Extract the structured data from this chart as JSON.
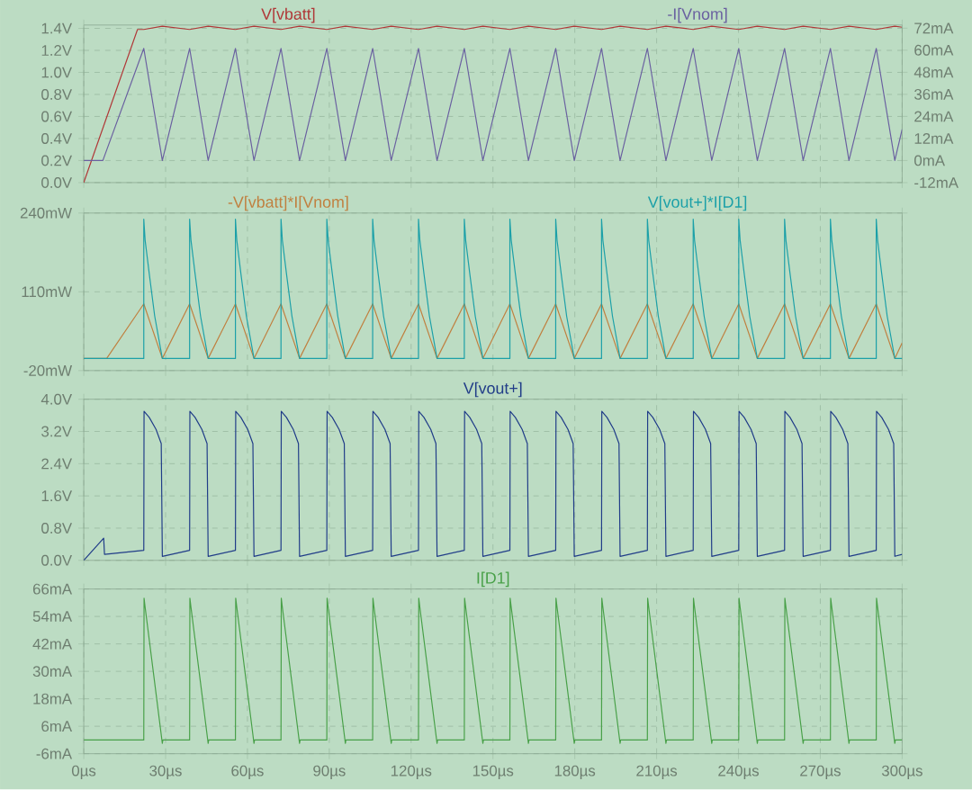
{
  "chart_data": [
    {
      "type": "line",
      "xlim": [
        0,
        300
      ],
      "xticks": [
        {
          "value": 0,
          "label": null
        },
        {
          "value": 30,
          "label": null
        },
        {
          "value": 60,
          "label": null
        },
        {
          "value": 90,
          "label": null
        },
        {
          "value": 120,
          "label": null
        },
        {
          "value": 150,
          "label": null
        },
        {
          "value": 180,
          "label": null
        },
        {
          "value": 210,
          "label": null
        },
        {
          "value": 240,
          "label": null
        },
        {
          "value": 270,
          "label": null
        },
        {
          "value": 300,
          "label": null
        }
      ],
      "ylim": [
        0,
        1.43
      ],
      "yticks": [
        {
          "value": 0,
          "label": "0.0V"
        },
        {
          "value": 0.2,
          "label": "0.2V"
        },
        {
          "value": 0.4,
          "label": "0.4V"
        },
        {
          "value": 0.6,
          "label": "0.6V"
        },
        {
          "value": 0.8,
          "label": "0.8V"
        },
        {
          "value": 1.0,
          "label": "1.0V"
        },
        {
          "value": 1.2,
          "label": "1.2V"
        },
        {
          "value": 1.4,
          "label": "1.4V"
        }
      ],
      "y2lim": [
        -12,
        73.7
      ],
      "y2ticks": [
        {
          "value": -12,
          "label": "-12mA"
        },
        {
          "value": 0,
          "label": "0mA"
        },
        {
          "value": 12,
          "label": "12mA"
        },
        {
          "value": 24,
          "label": "24mA"
        },
        {
          "value": 36,
          "label": "36mA"
        },
        {
          "value": 48,
          "label": "48mA"
        },
        {
          "value": 60,
          "label": "60mA"
        },
        {
          "value": 72,
          "label": "72mA"
        }
      ],
      "grid": true,
      "tick_labels": "y",
      "series": [
        {
          "name": "V[vbatt]",
          "color": "#b03838",
          "x": [
            0,
            19.7,
            22.0,
            28.8,
            38.8,
            45.6,
            55.6,
            62.4,
            72.3,
            79.1,
            89.1,
            95.9,
            105.9,
            112.7,
            122.7,
            129.5,
            139.5,
            146.3,
            156.2,
            163.0,
            173.0,
            179.8,
            189.8,
            196.6,
            206.6,
            213.4,
            223.4,
            230.2,
            240.1,
            246.9,
            256.9,
            263.7,
            273.7,
            280.5,
            290.5,
            297.3,
            300
          ],
          "values": [
            0,
            1.39,
            1.39,
            1.42,
            1.39,
            1.42,
            1.39,
            1.42,
            1.39,
            1.42,
            1.39,
            1.42,
            1.39,
            1.42,
            1.39,
            1.42,
            1.39,
            1.42,
            1.39,
            1.42,
            1.39,
            1.42,
            1.39,
            1.42,
            1.39,
            1.42,
            1.39,
            1.42,
            1.39,
            1.42,
            1.39,
            1.42,
            1.39,
            1.42,
            1.39,
            1.42,
            1.41
          ]
        },
        {
          "name": "-I[Vnom]",
          "color": "#6a60a0",
          "axis": "y2",
          "x": [
            0,
            7,
            22.0,
            28.8,
            38.8,
            45.6,
            55.6,
            62.4,
            72.3,
            79.1,
            89.1,
            95.9,
            105.9,
            112.7,
            122.7,
            129.5,
            139.5,
            146.3,
            156.2,
            163.0,
            173.0,
            179.8,
            189.8,
            196.6,
            206.6,
            213.4,
            223.4,
            230.2,
            240.1,
            246.9,
            256.9,
            263.7,
            273.7,
            280.5,
            290.5,
            297.3,
            300
          ],
          "values": [
            0,
            0,
            61,
            0,
            61,
            0,
            61,
            0,
            61,
            0,
            61,
            0,
            61,
            0,
            61,
            0,
            61,
            0,
            61,
            0,
            61,
            0,
            61,
            0,
            61,
            0,
            61,
            0,
            61,
            0,
            61,
            0,
            61,
            0,
            61,
            0,
            17
          ]
        }
      ]
    },
    {
      "type": "line",
      "xlim": [
        0,
        300
      ],
      "xticks": [
        {
          "value": 0,
          "label": null
        },
        {
          "value": 30,
          "label": null
        },
        {
          "value": 60,
          "label": null
        },
        {
          "value": 90,
          "label": null
        },
        {
          "value": 120,
          "label": null
        },
        {
          "value": 150,
          "label": null
        },
        {
          "value": 180,
          "label": null
        },
        {
          "value": 210,
          "label": null
        },
        {
          "value": 240,
          "label": null
        },
        {
          "value": 270,
          "label": null
        },
        {
          "value": 300,
          "label": null
        }
      ],
      "ylim": [
        -20,
        240
      ],
      "yticks": [
        {
          "value": -20,
          "label": "-20mW"
        },
        {
          "value": 110,
          "label": "110mW"
        },
        {
          "value": 240,
          "label": "240mW"
        }
      ],
      "grid": true,
      "tick_labels": "y",
      "series": [
        {
          "name": "-V[vbatt]*I[Vnom]",
          "color": "#c08040",
          "x": [
            0,
            8.4,
            22.0,
            28.8,
            38.8,
            45.6,
            55.6,
            62.4,
            72.3,
            79.1,
            89.1,
            95.9,
            105.9,
            112.7,
            122.7,
            129.5,
            139.5,
            146.3,
            156.2,
            163.0,
            173.0,
            179.8,
            189.8,
            196.6,
            206.6,
            213.4,
            223.4,
            230.2,
            240.1,
            246.9,
            256.9,
            263.7,
            273.7,
            280.5,
            290.5,
            297.3,
            300
          ],
          "values": [
            0,
            0,
            90,
            0,
            90,
            0,
            90,
            0,
            90,
            0,
            90,
            0,
            90,
            0,
            90,
            0,
            90,
            0,
            90,
            0,
            90,
            0,
            90,
            0,
            90,
            0,
            90,
            0,
            90,
            0,
            90,
            0,
            90,
            0,
            90,
            0,
            26
          ]
        },
        {
          "name": "V[vout+]*I[D1]",
          "color": "#1ca0a8",
          "x": [
            0,
            22.0,
            22.0,
            22.5,
            24.0,
            26.0,
            28.8,
            38.8,
            38.8,
            39.3,
            40.8,
            42.8,
            45.6,
            55.6,
            55.6,
            56.1,
            57.6,
            59.6,
            62.4,
            72.3,
            72.3,
            72.8,
            74.3,
            76.3,
            79.1,
            89.1,
            89.1,
            89.6,
            91.1,
            93.1,
            95.9,
            105.9,
            105.9,
            106.4,
            107.9,
            109.9,
            112.7,
            122.7,
            122.7,
            123.2,
            124.7,
            126.7,
            129.5,
            139.5,
            139.5,
            140.0,
            141.5,
            143.5,
            146.3,
            156.2,
            156.2,
            156.7,
            158.2,
            160.2,
            163.0,
            173.0,
            173.0,
            173.5,
            175.0,
            177.0,
            179.8,
            189.8,
            189.8,
            190.3,
            191.8,
            193.8,
            196.6,
            206.6,
            206.6,
            207.1,
            208.6,
            210.6,
            213.4,
            223.4,
            223.4,
            223.9,
            225.4,
            227.4,
            230.2,
            240.1,
            240.1,
            240.6,
            242.1,
            244.1,
            246.9,
            256.9,
            256.9,
            257.4,
            258.9,
            260.9,
            263.7,
            273.7,
            273.7,
            274.2,
            275.7,
            277.7,
            280.5,
            290.5,
            290.5,
            291.0,
            292.5,
            294.5,
            297.3,
            300
          ],
          "values": [
            0,
            0,
            230,
            195,
            140,
            70,
            0,
            0,
            230,
            195,
            140,
            70,
            0,
            0,
            230,
            195,
            140,
            70,
            0,
            0,
            230,
            195,
            140,
            70,
            0,
            0,
            230,
            195,
            140,
            70,
            0,
            0,
            230,
            195,
            140,
            70,
            0,
            0,
            230,
            195,
            140,
            70,
            0,
            0,
            230,
            195,
            140,
            70,
            0,
            0,
            230,
            195,
            140,
            70,
            0,
            0,
            230,
            195,
            140,
            70,
            0,
            0,
            230,
            195,
            140,
            70,
            0,
            0,
            230,
            195,
            140,
            70,
            0,
            0,
            230,
            195,
            140,
            70,
            0,
            0,
            230,
            195,
            140,
            70,
            0,
            0,
            230,
            195,
            140,
            70,
            0,
            0,
            230,
            195,
            140,
            70,
            0,
            0,
            230,
            195,
            140,
            70,
            0,
            0
          ]
        }
      ]
    },
    {
      "type": "line",
      "xlim": [
        0,
        300
      ],
      "xticks": [
        {
          "value": 0,
          "label": null
        },
        {
          "value": 30,
          "label": null
        },
        {
          "value": 60,
          "label": null
        },
        {
          "value": 90,
          "label": null
        },
        {
          "value": 120,
          "label": null
        },
        {
          "value": 150,
          "label": null
        },
        {
          "value": 180,
          "label": null
        },
        {
          "value": 210,
          "label": null
        },
        {
          "value": 240,
          "label": null
        },
        {
          "value": 270,
          "label": null
        },
        {
          "value": 300,
          "label": null
        }
      ],
      "ylim": [
        0,
        4.0
      ],
      "yticks": [
        {
          "value": 0,
          "label": "0.0V"
        },
        {
          "value": 0.8,
          "label": "0.8V"
        },
        {
          "value": 1.6,
          "label": "1.6V"
        },
        {
          "value": 2.4,
          "label": "2.4V"
        },
        {
          "value": 3.2,
          "label": "3.2V"
        },
        {
          "value": 4.0,
          "label": "4.0V"
        }
      ],
      "grid": true,
      "tick_labels": "y",
      "series": [
        {
          "name": "V[vout+]",
          "color": "#203c88",
          "x": [
            0,
            7.3,
            7.6,
            22.0,
            22.1,
            24.0,
            26.5,
            28.4,
            28.8,
            38.8,
            38.9,
            40.8,
            43.3,
            45.2,
            45.6,
            55.6,
            55.7,
            57.6,
            60.1,
            62.0,
            62.4,
            72.3,
            72.4,
            74.3,
            76.8,
            78.7,
            79.1,
            89.1,
            89.2,
            91.1,
            93.6,
            95.5,
            95.9,
            105.9,
            106.0,
            107.9,
            110.4,
            112.3,
            112.7,
            122.7,
            122.8,
            124.7,
            127.2,
            129.1,
            129.5,
            139.5,
            139.6,
            141.5,
            144.0,
            145.9,
            146.3,
            156.2,
            156.3,
            158.2,
            160.7,
            162.6,
            163.0,
            173.0,
            173.1,
            175.0,
            177.5,
            179.4,
            179.8,
            189.8,
            189.9,
            191.8,
            194.3,
            196.2,
            196.6,
            206.6,
            206.7,
            208.6,
            211.1,
            213.0,
            213.4,
            223.4,
            223.5,
            225.4,
            227.9,
            229.8,
            230.2,
            240.1,
            240.2,
            242.1,
            244.6,
            246.5,
            246.9,
            256.9,
            257.0,
            258.9,
            261.4,
            263.3,
            263.7,
            273.7,
            273.8,
            275.7,
            278.2,
            280.1,
            280.5,
            290.5,
            290.6,
            292.5,
            295.0,
            296.9,
            297.3,
            300
          ],
          "values": [
            0,
            0.55,
            0.15,
            0.25,
            3.7,
            3.55,
            3.25,
            2.9,
            0.1,
            0.25,
            3.7,
            3.55,
            3.25,
            2.9,
            0.1,
            0.25,
            3.7,
            3.55,
            3.25,
            2.9,
            0.1,
            0.25,
            3.7,
            3.55,
            3.25,
            2.9,
            0.1,
            0.25,
            3.7,
            3.55,
            3.25,
            2.9,
            0.1,
            0.25,
            3.7,
            3.55,
            3.25,
            2.9,
            0.1,
            0.25,
            3.7,
            3.55,
            3.25,
            2.9,
            0.1,
            0.25,
            3.7,
            3.55,
            3.25,
            2.9,
            0.1,
            0.25,
            3.7,
            3.55,
            3.25,
            2.9,
            0.1,
            0.25,
            3.7,
            3.55,
            3.25,
            2.9,
            0.1,
            0.25,
            3.7,
            3.55,
            3.25,
            2.9,
            0.1,
            0.25,
            3.7,
            3.55,
            3.25,
            2.9,
            0.1,
            0.25,
            3.7,
            3.55,
            3.25,
            2.9,
            0.1,
            0.25,
            3.7,
            3.55,
            3.25,
            2.9,
            0.1,
            0.25,
            3.7,
            3.55,
            3.25,
            2.9,
            0.1,
            0.25,
            3.7,
            3.55,
            3.25,
            2.9,
            0.1,
            0.25,
            3.7,
            3.55,
            3.25,
            2.9,
            0.1,
            0.15
          ]
        }
      ]
    },
    {
      "type": "line",
      "xlim": [
        0,
        300
      ],
      "xticks": [
        {
          "value": 0,
          "label": "0µs"
        },
        {
          "value": 30,
          "label": "30µs"
        },
        {
          "value": 60,
          "label": "60µs"
        },
        {
          "value": 90,
          "label": "90µs"
        },
        {
          "value": 120,
          "label": "120µs"
        },
        {
          "value": 150,
          "label": "150µs"
        },
        {
          "value": 180,
          "label": "180µs"
        },
        {
          "value": 210,
          "label": "210µs"
        },
        {
          "value": 240,
          "label": "240µs"
        },
        {
          "value": 270,
          "label": "270µs"
        },
        {
          "value": 300,
          "label": "300µs"
        }
      ],
      "ylim": [
        -6,
        66
      ],
      "yticks": [
        {
          "value": -6,
          "label": "-6mA"
        },
        {
          "value": 6,
          "label": "6mA"
        },
        {
          "value": 18,
          "label": "18mA"
        },
        {
          "value": 30,
          "label": "30mA"
        },
        {
          "value": 42,
          "label": "42mA"
        },
        {
          "value": 54,
          "label": "54mA"
        },
        {
          "value": 66,
          "label": "66mA"
        }
      ],
      "grid": true,
      "series": [
        {
          "name": "I[D1]",
          "color": "#48a048",
          "x": [
            0,
            22.0,
            22.1,
            22.5,
            28.8,
            29.0,
            38.8,
            38.9,
            39.3,
            45.6,
            45.8,
            55.6,
            55.7,
            56.1,
            62.4,
            62.6,
            72.3,
            72.4,
            72.8,
            79.1,
            79.3,
            89.1,
            89.2,
            89.6,
            95.9,
            96.1,
            105.9,
            106.0,
            106.4,
            112.7,
            112.9,
            122.7,
            122.8,
            123.2,
            129.5,
            129.7,
            139.5,
            139.6,
            140.0,
            146.3,
            146.5,
            156.2,
            156.3,
            156.7,
            163.0,
            163.2,
            173.0,
            173.1,
            173.5,
            179.8,
            180.0,
            189.8,
            189.9,
            190.3,
            196.6,
            196.8,
            206.6,
            206.7,
            207.1,
            213.4,
            213.6,
            223.4,
            223.5,
            223.9,
            230.2,
            230.4,
            240.1,
            240.2,
            240.6,
            246.9,
            247.1,
            256.9,
            257.0,
            257.4,
            263.7,
            263.9,
            273.7,
            273.8,
            274.2,
            280.5,
            280.7,
            290.5,
            290.6,
            291.0,
            297.3,
            297.5,
            300
          ],
          "values": [
            0,
            0,
            62,
            58,
            -1.5,
            0,
            0,
            62,
            58,
            -1.5,
            0,
            0,
            62,
            58,
            -1.5,
            0,
            0,
            62,
            58,
            -1.5,
            0,
            0,
            62,
            58,
            -1.5,
            0,
            0,
            62,
            58,
            -1.5,
            0,
            0,
            62,
            58,
            -1.5,
            0,
            0,
            62,
            58,
            -1.5,
            0,
            0,
            62,
            58,
            -1.5,
            0,
            0,
            62,
            58,
            -1.5,
            0,
            0,
            62,
            58,
            -1.5,
            0,
            0,
            62,
            58,
            -1.5,
            0,
            0,
            62,
            58,
            -1.5,
            0,
            0,
            62,
            58,
            -1.5,
            0,
            0,
            62,
            58,
            -1.5,
            0,
            0,
            62,
            58,
            -1.5,
            0,
            0,
            62,
            58,
            -1.5,
            0,
            0
          ]
        }
      ]
    }
  ]
}
